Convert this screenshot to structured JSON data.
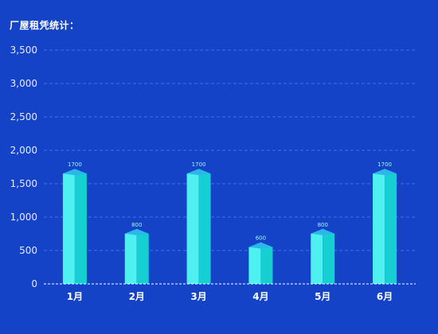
{
  "title": "厂屋租凭统计：",
  "chart_data": {
    "type": "bar",
    "title": "厂屋租凭统计：",
    "categories": [
      "1月",
      "2月",
      "3月",
      "4月",
      "5月",
      "6月"
    ],
    "values": [
      1700,
      800,
      1700,
      600,
      800,
      1700
    ],
    "ylim": [
      0,
      3500
    ],
    "yticks": [
      0,
      500,
      1000,
      1500,
      2000,
      2500,
      3000,
      3500
    ],
    "ytick_labels": [
      "0",
      "500",
      "1,000",
      "1,500",
      "2,000",
      "2,500",
      "3,000",
      "3,500"
    ],
    "xlabel": "",
    "ylabel": "",
    "grid": true,
    "legend": "none",
    "colors": {
      "background": "#1443c8",
      "bar_face_left": "#4ff0f0",
      "bar_face_right": "#15cfd2",
      "bar_top": "#2bb8e8",
      "grid": "#3f72e6",
      "baseline": "#ffffff",
      "value_label": "#9ef6ff"
    }
  }
}
